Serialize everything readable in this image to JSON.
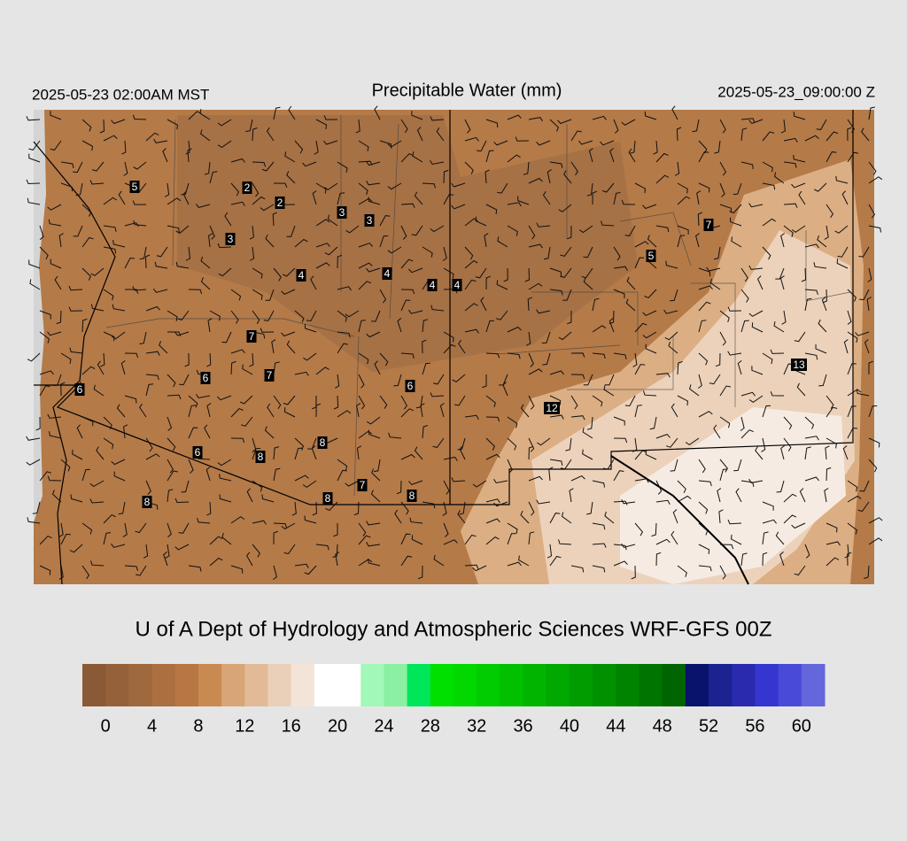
{
  "header": {
    "left": "2025-05-23 02:00AM MST",
    "title": "Precipitable Water (mm)",
    "right": "2025-05-23_09:00:00 Z"
  },
  "map": {
    "station_labels": [
      "5",
      "2",
      "2",
      "3",
      "3",
      "3",
      "4",
      "4",
      "4",
      "4",
      "7",
      "5",
      "7",
      "6",
      "7",
      "6",
      "6",
      "6",
      "8",
      "8",
      "8",
      "7",
      "8",
      "8",
      "12",
      "13"
    ]
  },
  "footer": {
    "credit": "U of A Dept of Hydrology and Atmospheric Sciences WRF-GFS 00Z"
  },
  "colorbar": {
    "vmin": -2,
    "vmax": 62,
    "colors": [
      "#8a5a36",
      "#95613a",
      "#a0683d",
      "#ab6f40",
      "#b77644",
      "#c98a52",
      "#d8a577",
      "#e2ba97",
      "#ebd0b9",
      "#f4e4d8",
      "#ffffff",
      "#ffffff",
      "#a2f8b8",
      "#8cf0a2",
      "#00e65a",
      "#00e000",
      "#00d800",
      "#00cc00",
      "#00c000",
      "#00b400",
      "#00a800",
      "#009c00",
      "#009000",
      "#008400",
      "#007400",
      "#006400",
      "#0a136b",
      "#1a238f",
      "#2a2aaf",
      "#3535cf",
      "#4a4ad8",
      "#6466dc"
    ],
    "ticks": [
      0,
      4,
      8,
      12,
      16,
      20,
      24,
      28,
      32,
      36,
      40,
      44,
      48,
      52,
      56,
      60
    ]
  }
}
